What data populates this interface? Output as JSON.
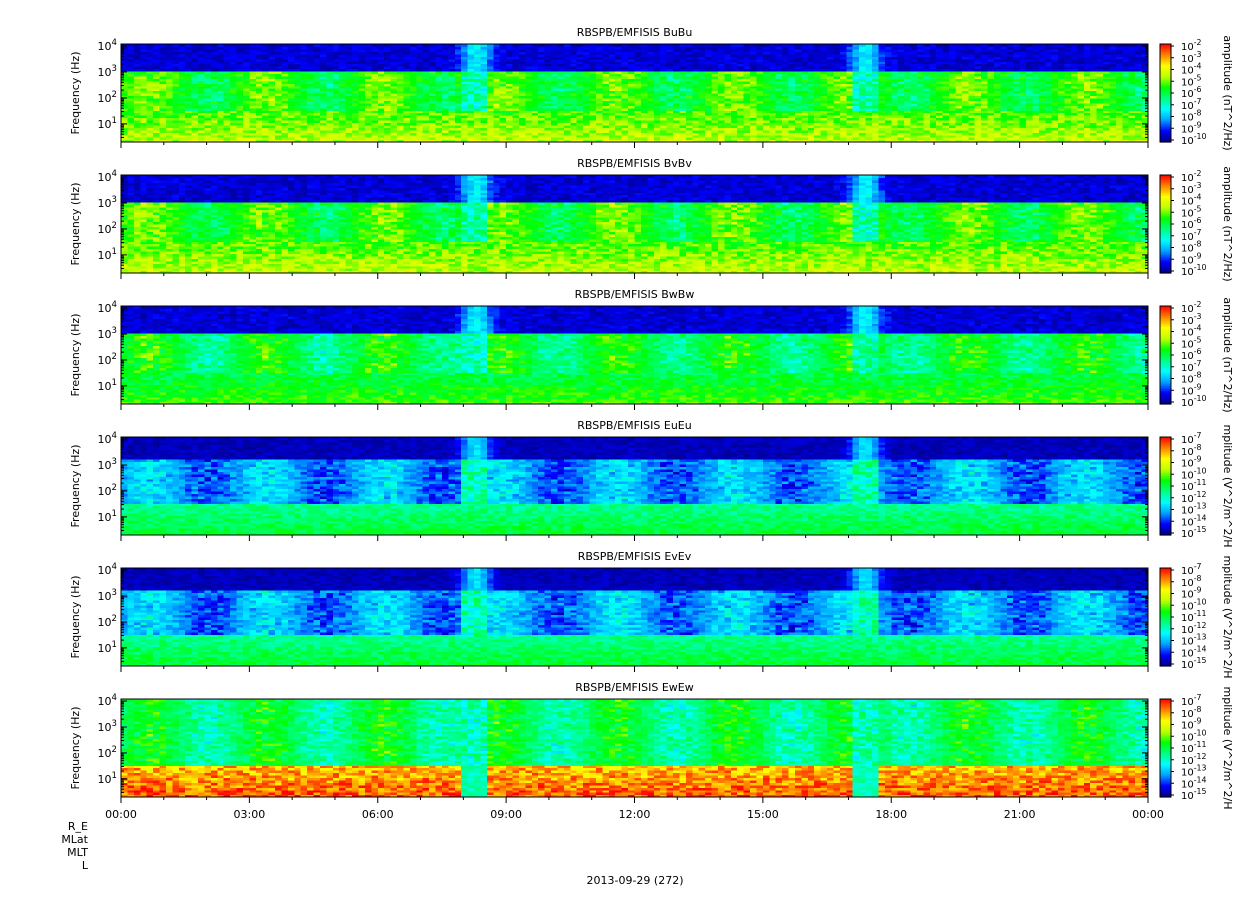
{
  "chart_data": [
    {
      "type": "heatmap",
      "title": "RBSPB/EMFISIS  BuBu",
      "ylabel": "Frequency (Hz)",
      "ytick_labels": [
        "10^4",
        "10^3",
        "10^2",
        "10^1"
      ],
      "ylim_hz": [
        2,
        12000
      ],
      "y_scale": "log",
      "colorbar": {
        "label": "amplitude (nT^2/Hz)",
        "tick_labels": [
          "10^-2",
          "10^-3",
          "10^-4",
          "10^-5",
          "10^-6",
          "10^-7",
          "10^-8",
          "10^-9",
          "10^-10"
        ]
      },
      "profile": {
        "background_level": 0.15,
        "low_freq_level": 0.72,
        "noise_floor_level": 0.5,
        "upper_cutoff_hz": 900,
        "event_hours": [
          8.3,
          17.4
        ]
      }
    },
    {
      "type": "heatmap",
      "title": "RBSPB/EMFISIS  BvBv",
      "ylabel": "Frequency (Hz)",
      "ytick_labels": [
        "10^4",
        "10^3",
        "10^2",
        "10^1"
      ],
      "ylim_hz": [
        2,
        12000
      ],
      "y_scale": "log",
      "colorbar": {
        "label": "amplitude (nT^2/Hz)",
        "tick_labels": [
          "10^-2",
          "10^-3",
          "10^-4",
          "10^-5",
          "10^-6",
          "10^-7",
          "10^-8",
          "10^-9",
          "10^-10"
        ]
      },
      "profile": {
        "background_level": 0.15,
        "low_freq_level": 0.72,
        "noise_floor_level": 0.5,
        "upper_cutoff_hz": 900,
        "event_hours": [
          8.3,
          17.4
        ]
      }
    },
    {
      "type": "heatmap",
      "title": "RBSPB/EMFISIS  BwBw",
      "ylabel": "Frequency (Hz)",
      "ytick_labels": [
        "10^4",
        "10^3",
        "10^2",
        "10^1"
      ],
      "ylim_hz": [
        2,
        12000
      ],
      "y_scale": "log",
      "colorbar": {
        "label": "amplitude (nT^2/Hz)",
        "tick_labels": [
          "10^-2",
          "10^-3",
          "10^-4",
          "10^-5",
          "10^-6",
          "10^-7",
          "10^-8",
          "10^-9",
          "10^-10"
        ]
      },
      "profile": {
        "background_level": 0.15,
        "low_freq_level": 0.62,
        "noise_floor_level": 0.45,
        "upper_cutoff_hz": 900,
        "event_hours": [
          8.3,
          17.4
        ]
      }
    },
    {
      "type": "heatmap",
      "title": "RBSPB/EMFISIS  EuEu",
      "ylabel": "Frequency (Hz)",
      "ytick_labels": [
        "10^4",
        "10^3",
        "10^2",
        "10^1"
      ],
      "ylim_hz": [
        2,
        12000
      ],
      "y_scale": "log",
      "colorbar": {
        "label": "mplitude (V^2/m^2/H",
        "tick_labels": [
          "10^-7",
          "10^-8",
          "10^-9",
          "10^-10",
          "10^-11",
          "10^-12",
          "10^-13",
          "10^-14",
          "10^-15"
        ]
      },
      "profile": {
        "background_level": 0.1,
        "low_freq_level": 0.55,
        "noise_floor_level": 0.18,
        "upper_cutoff_hz": 1500,
        "event_hours": [
          8.3,
          17.4
        ]
      }
    },
    {
      "type": "heatmap",
      "title": "RBSPB/EMFISIS  EvEv",
      "ylabel": "Frequency (Hz)",
      "ytick_labels": [
        "10^4",
        "10^3",
        "10^2",
        "10^1"
      ],
      "ylim_hz": [
        2,
        12000
      ],
      "y_scale": "log",
      "colorbar": {
        "label": "mplitude (V^2/m^2/H",
        "tick_labels": [
          "10^-7",
          "10^-8",
          "10^-9",
          "10^-10",
          "10^-11",
          "10^-12",
          "10^-13",
          "10^-14",
          "10^-15"
        ]
      },
      "profile": {
        "background_level": 0.1,
        "low_freq_level": 0.55,
        "noise_floor_level": 0.18,
        "upper_cutoff_hz": 1500,
        "event_hours": [
          8.3,
          17.4
        ]
      }
    },
    {
      "type": "heatmap",
      "title": "RBSPB/EMFISIS  EwEw",
      "ylabel": "Frequency (Hz)",
      "ytick_labels": [
        "10^4",
        "10^3",
        "10^2",
        "10^1"
      ],
      "ylim_hz": [
        2,
        12000
      ],
      "y_scale": "log",
      "colorbar": {
        "label": "mplitude (V^2/m^2/H",
        "tick_labels": [
          "10^-7",
          "10^-8",
          "10^-9",
          "10^-10",
          "10^-11",
          "10^-12",
          "10^-13",
          "10^-14",
          "10^-15"
        ]
      },
      "profile": {
        "background_level": 0.38,
        "low_freq_level": 0.98,
        "noise_floor_level": 0.42,
        "upper_cutoff_hz": 12000,
        "event_hours": [
          8.3,
          17.4
        ]
      }
    }
  ],
  "x_axis": {
    "tick_labels": [
      "00:00",
      "03:00",
      "06:00",
      "09:00",
      "12:00",
      "15:00",
      "18:00",
      "21:00",
      "00:00"
    ],
    "range_hours": [
      0,
      24
    ]
  },
  "ephemeris_labels": [
    "R_E",
    "MLat",
    "MLT",
    "L"
  ],
  "date_label": "2013-09-29 (272)",
  "colormap_stops": [
    "#000080",
    "#0000ff",
    "#00a0ff",
    "#00ffff",
    "#00ff80",
    "#00ff00",
    "#c0ff00",
    "#ffff00",
    "#ff8000",
    "#ff0000"
  ]
}
